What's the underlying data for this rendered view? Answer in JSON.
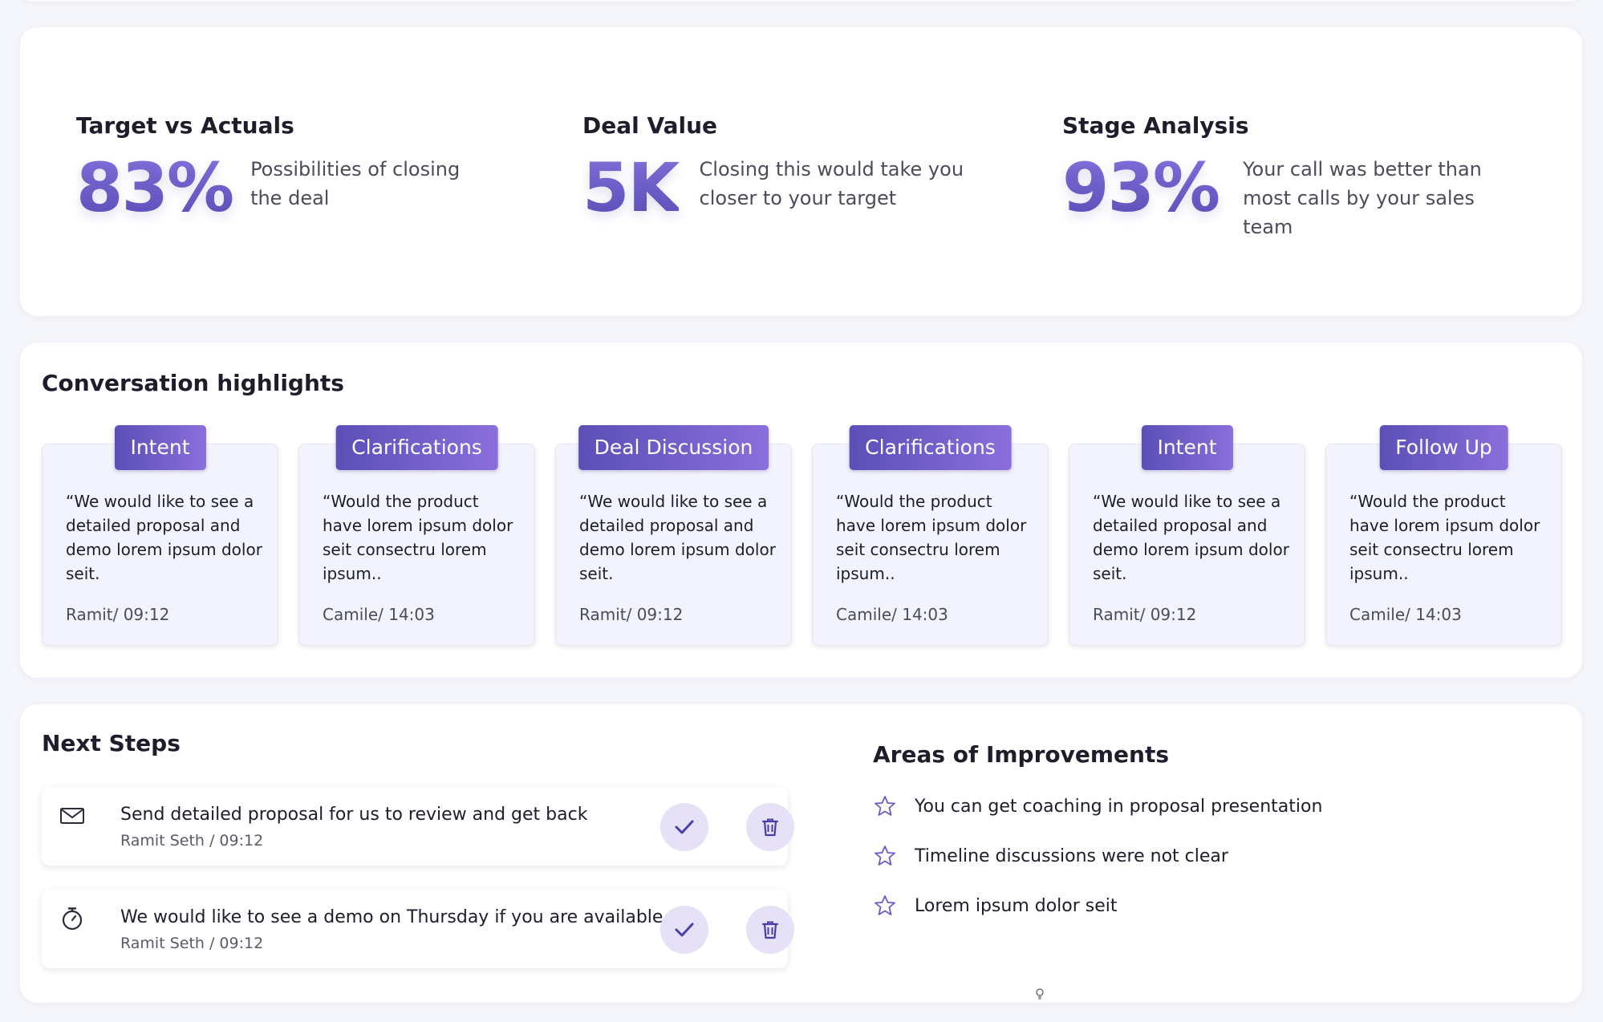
{
  "metrics": [
    {
      "title": "Target vs Actuals",
      "value": "83%",
      "description": "Possibilities of closing the deal"
    },
    {
      "title": "Deal Value",
      "value": "5K",
      "description": "Closing this would take you closer to your target"
    },
    {
      "title": "Stage Analysis",
      "value": "93%",
      "description": "Your call was better than most calls by your sales team"
    }
  ],
  "highlights": {
    "title": "Conversation highlights",
    "cards": [
      {
        "tag": "Intent",
        "quote": "“We would like to see a detailed proposal and demo lorem ipsum dolor seit.",
        "meta": "Ramit/ 09:12"
      },
      {
        "tag": "Clarifications",
        "quote": "“Would the product have lorem ipsum dolor seit consectru lorem ipsum..",
        "meta": "Camile/ 14:03"
      },
      {
        "tag": "Deal Discussion",
        "quote": "“We would like to see a detailed proposal and demo lorem ipsum dolor seit.",
        "meta": "Ramit/ 09:12"
      },
      {
        "tag": "Clarifications",
        "quote": "“Would the product have lorem ipsum dolor seit consectru lorem ipsum..",
        "meta": "Camile/ 14:03"
      },
      {
        "tag": "Intent",
        "quote": "“We would like to see a detailed proposal and demo lorem ipsum dolor seit.",
        "meta": "Ramit/ 09:12"
      },
      {
        "tag": "Follow Up",
        "quote": "“Would the product have lorem ipsum dolor seit consectru lorem ipsum..",
        "meta": "Camile/ 14:03"
      }
    ]
  },
  "next_steps": {
    "title": "Next Steps",
    "items": [
      {
        "icon": "envelope-icon",
        "text": "Send detailed proposal for us to review and get back",
        "meta": "Ramit Seth / 09:12"
      },
      {
        "icon": "stopwatch-icon",
        "text": "We would like to see a demo on Thursday if you are available",
        "meta": "Ramit Seth / 09:12"
      }
    ]
  },
  "improvements": {
    "title": "Areas of Improvements",
    "items": [
      "You can get coaching in proposal presentation",
      "Timeline discussions were not clear",
      "Lorem ipsum dolor seit"
    ]
  },
  "colors": {
    "accent_start": "#5b4fb7",
    "accent_end": "#8a6fdc",
    "card_bg": "#f2f3fc",
    "button_bg": "#e6e1f7"
  }
}
